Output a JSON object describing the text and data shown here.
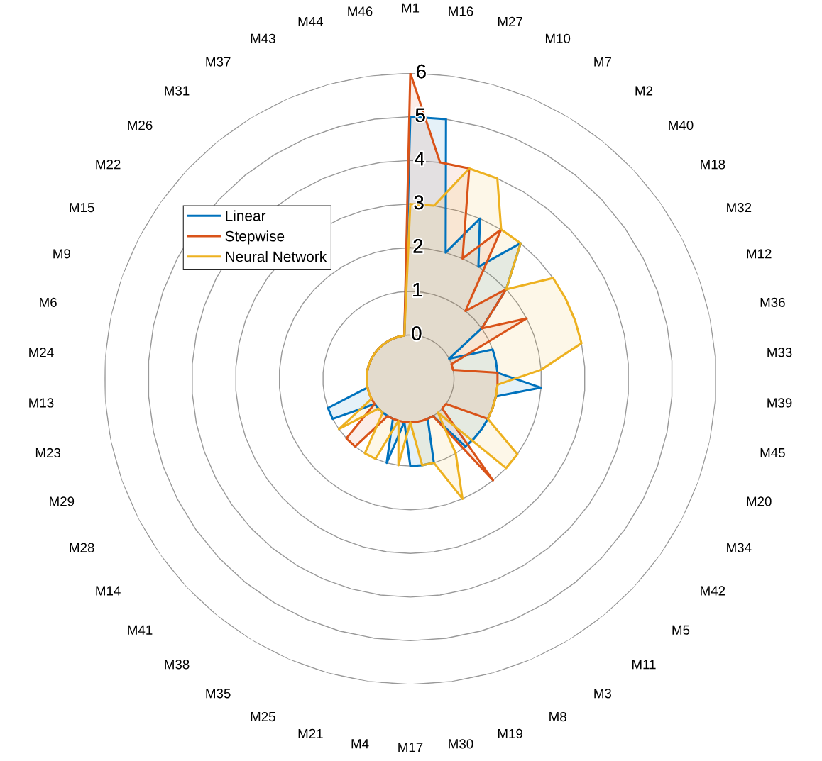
{
  "chart_data": {
    "type": "radar",
    "categories": [
      "M1",
      "M16",
      "M27",
      "M10",
      "M7",
      "M2",
      "M40",
      "M18",
      "M32",
      "M12",
      "M36",
      "M33",
      "M39",
      "M45",
      "M20",
      "M34",
      "M42",
      "M5",
      "M11",
      "M3",
      "M8",
      "M19",
      "M30",
      "M17",
      "M4",
      "M21",
      "M25",
      "M35",
      "M38",
      "M41",
      "M14",
      "M28",
      "M29",
      "M23",
      "M13",
      "M24",
      "M6",
      "M9",
      "M15",
      "M22",
      "M26",
      "M31",
      "M37",
      "M43",
      "M44",
      "M46"
    ],
    "series": [
      {
        "name": "Linear",
        "color": "#0072bd",
        "values": [
          5,
          5,
          2,
          3,
          2,
          3,
          2,
          1,
          0,
          1,
          1,
          1,
          2,
          1,
          1,
          1,
          1,
          1,
          1,
          0,
          0,
          1,
          1,
          1,
          0,
          1,
          0,
          0,
          0,
          0,
          0,
          1,
          1,
          0,
          0,
          0,
          0,
          0,
          0,
          0,
          0,
          0,
          0,
          0,
          0,
          0
        ]
      },
      {
        "name": "Stepwise",
        "color": "#d95319",
        "values": [
          6,
          4,
          4,
          2,
          3,
          1,
          2,
          1,
          2,
          0,
          0,
          1,
          1,
          1,
          1,
          1,
          0,
          0,
          2,
          0,
          0,
          0,
          0,
          0,
          0,
          0,
          0,
          0,
          1,
          1,
          0,
          0,
          0,
          0,
          0,
          0,
          0,
          0,
          0,
          0,
          0,
          0,
          0,
          0,
          0,
          0
        ]
      },
      {
        "name": "Neural Network",
        "color": "#edb120",
        "values": [
          3,
          3,
          4,
          4,
          3,
          3,
          2,
          3,
          3,
          3,
          3,
          2,
          1,
          1,
          1,
          1,
          2,
          2,
          0,
          1,
          2,
          1,
          1,
          0,
          1,
          0,
          1,
          1,
          0,
          0,
          1,
          0,
          0,
          0,
          0,
          0,
          0,
          0,
          0,
          0,
          0,
          0,
          0,
          0,
          0,
          0
        ]
      }
    ],
    "ylim": [
      -1,
      6
    ],
    "yticks": [
      0,
      1,
      2,
      3,
      4,
      5,
      6
    ],
    "grid": true,
    "legend": "top left"
  }
}
